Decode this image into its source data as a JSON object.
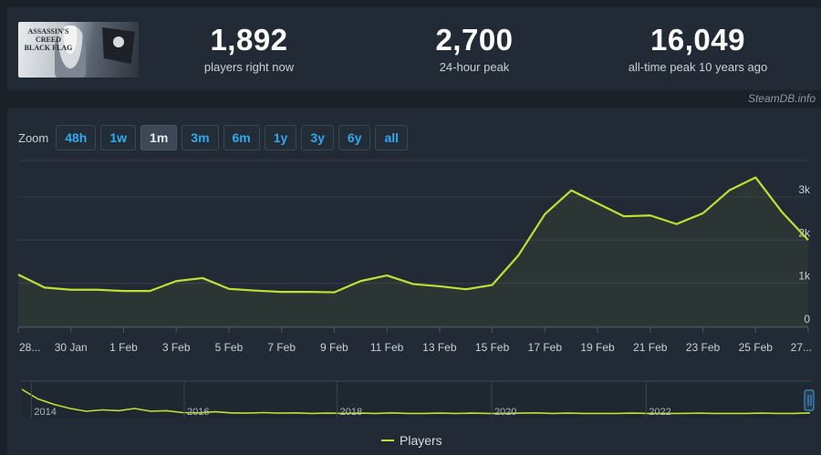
{
  "header": {
    "thumb_title": "ASSASSIN'S CREED BLACK FLAG",
    "stats": [
      {
        "value": "1,892",
        "label": "players right now"
      },
      {
        "value": "2,700",
        "label": "24-hour peak"
      },
      {
        "value": "16,049",
        "label": "all-time peak 10 years ago"
      }
    ],
    "credit": "SteamDB.info"
  },
  "zoom": {
    "label": "Zoom",
    "buttons": [
      "48h",
      "1w",
      "1m",
      "3m",
      "6m",
      "1y",
      "3y",
      "6y",
      "all"
    ],
    "active": "1m"
  },
  "colors": {
    "line": "#bfe134",
    "grid": "#333e4a",
    "axis_text": "#c9d0d6",
    "button_text": "#33a9f0"
  },
  "chart_data": {
    "type": "line",
    "series": [
      {
        "name": "Players",
        "x_index": [
          0,
          1,
          2,
          3,
          4,
          5,
          6,
          7,
          8,
          9,
          10,
          11,
          12,
          13,
          14,
          15,
          16,
          17,
          18,
          19,
          20,
          21,
          22,
          23,
          24,
          25,
          26,
          27,
          28,
          29,
          30
        ],
        "values": [
          1200,
          900,
          850,
          850,
          820,
          820,
          1050,
          1120,
          870,
          830,
          800,
          800,
          790,
          1050,
          1180,
          980,
          930,
          860,
          960,
          1650,
          2600,
          3150,
          2850,
          2550,
          2570,
          2370,
          2620,
          3150,
          3450,
          2650,
          2000
        ]
      }
    ],
    "x_tick_labels": [
      "28...",
      "30 Jan",
      "1 Feb",
      "3 Feb",
      "5 Feb",
      "7 Feb",
      "9 Feb",
      "11 Feb",
      "13 Feb",
      "15 Feb",
      "17 Feb",
      "19 Feb",
      "21 Feb",
      "23 Feb",
      "25 Feb",
      "27..."
    ],
    "x_tick_index": [
      0,
      2,
      4,
      6,
      8,
      10,
      12,
      14,
      16,
      18,
      20,
      22,
      24,
      26,
      28,
      30
    ],
    "y_tick_labels": [
      "0",
      "1k",
      "2k",
      "3k"
    ],
    "y_tick_values": [
      0,
      1000,
      2000,
      3000
    ],
    "ylim": [
      0,
      3800
    ],
    "grid": true,
    "legend": "bottom-center",
    "navigator": {
      "year_labels": [
        "2014",
        "2016",
        "2018",
        "2020",
        "2022"
      ],
      "year_positions": [
        0.012,
        0.206,
        0.4,
        0.596,
        0.792
      ],
      "values": [
        0.9,
        0.55,
        0.35,
        0.2,
        0.1,
        0.15,
        0.12,
        0.2,
        0.1,
        0.12,
        0.05,
        0.04,
        0.08,
        0.04,
        0.03,
        0.05,
        0.03,
        0.04,
        0.02,
        0.03,
        0.02,
        0.03,
        0.02,
        0.04,
        0.02,
        0.02,
        0.03,
        0.02,
        0.03,
        0.02,
        0.02,
        0.03,
        0.04,
        0.02,
        0.03,
        0.02,
        0.02,
        0.02,
        0.03,
        0.02,
        0.02,
        0.02,
        0.03,
        0.02,
        0.02,
        0.02,
        0.03,
        0.02,
        0.02,
        0.04
      ]
    }
  }
}
